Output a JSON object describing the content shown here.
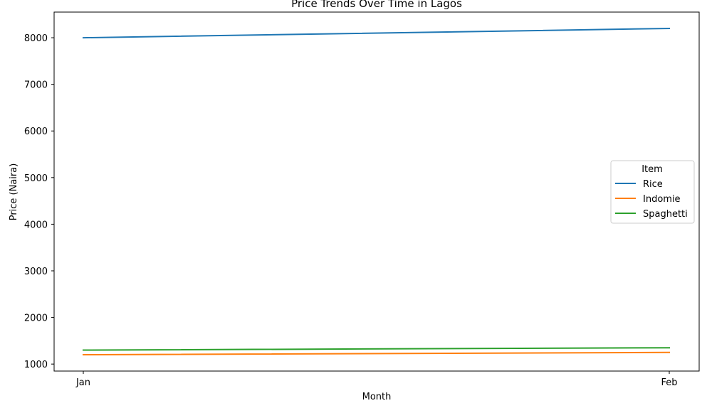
{
  "chart_data": {
    "type": "line",
    "title": "Price Trends Over Time in Lagos",
    "xlabel": "Month",
    "ylabel": "Price (Naira)",
    "categories": [
      "Jan",
      "Feb"
    ],
    "ylim": [
      850,
      8550
    ],
    "yticks": [
      1000,
      2000,
      3000,
      4000,
      5000,
      6000,
      7000,
      8000
    ],
    "grid": false,
    "legend": {
      "title": "Item",
      "placement": "center-right"
    },
    "series": [
      {
        "name": "Rice",
        "values": [
          8000,
          8200
        ],
        "color": "#1f77b4"
      },
      {
        "name": "Indomie",
        "values": [
          1200,
          1250
        ],
        "color": "#ff7f0e"
      },
      {
        "name": "Spaghetti",
        "values": [
          1300,
          1350
        ],
        "color": "#2ca02c"
      }
    ]
  }
}
